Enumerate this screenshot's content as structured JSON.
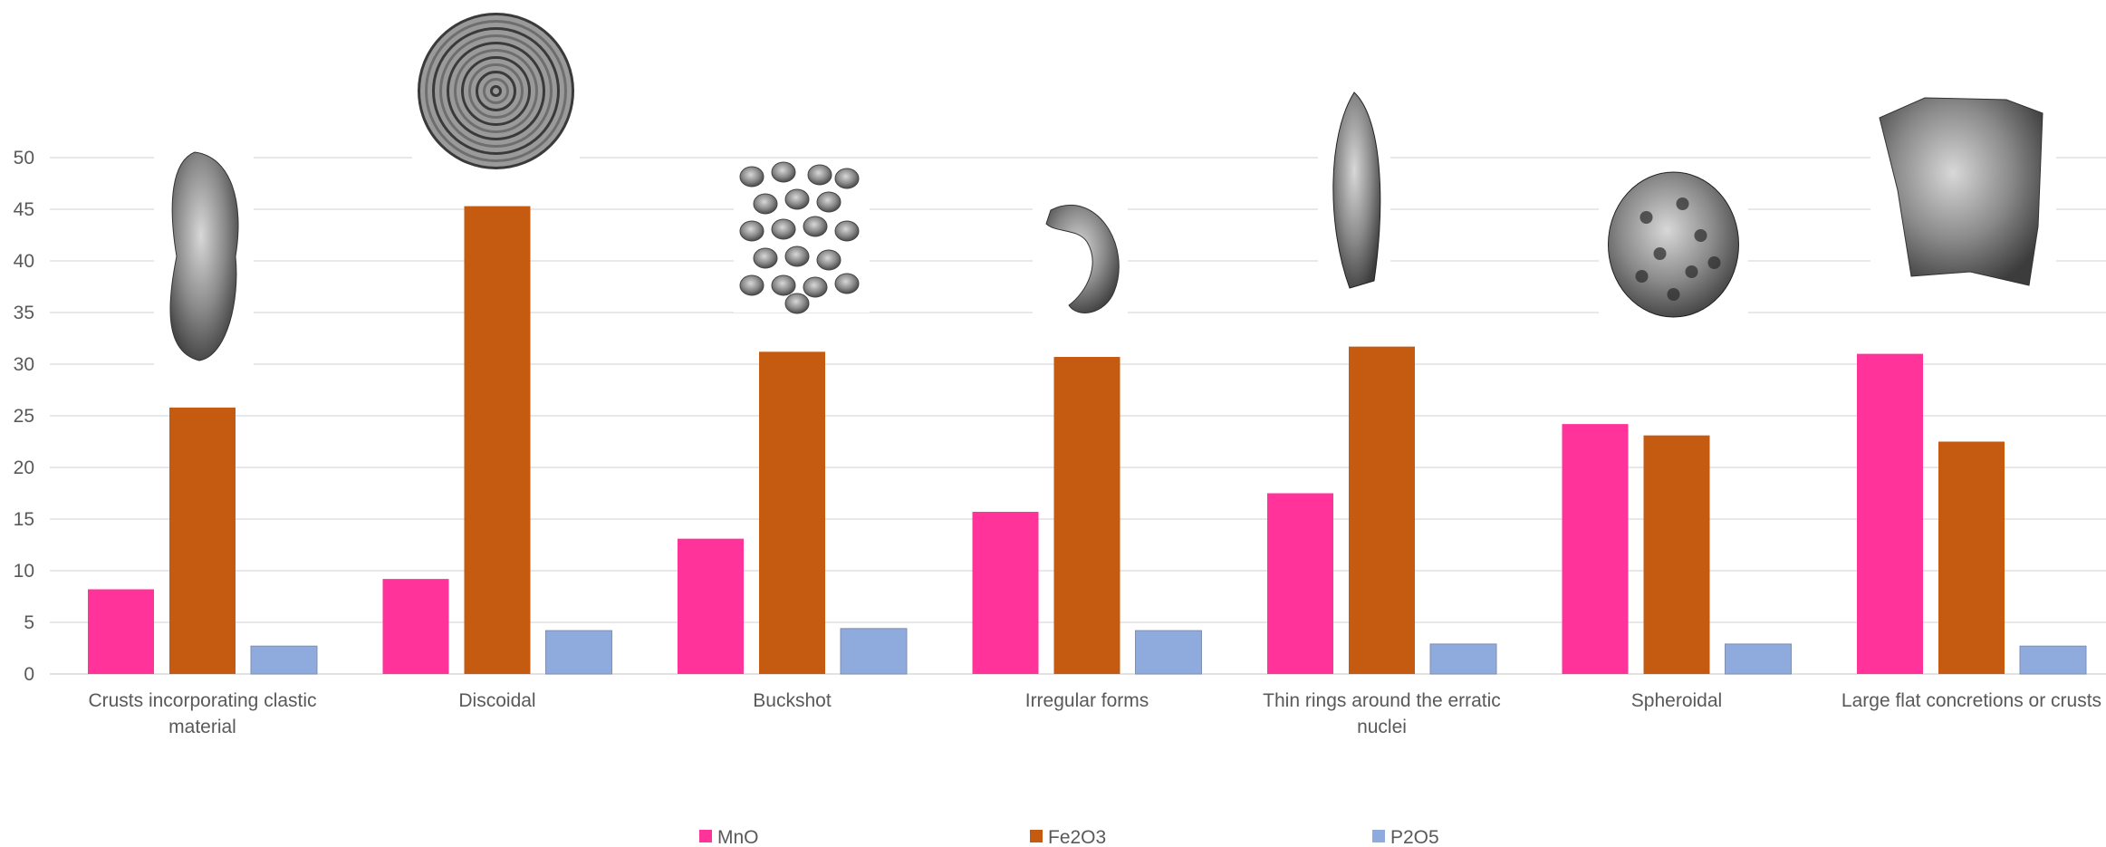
{
  "chart_data": {
    "type": "bar",
    "title": "",
    "xlabel": "",
    "ylabel": "",
    "ylim": [
      0,
      50
    ],
    "yticks": [
      "0",
      "5",
      "10",
      "15",
      "20",
      "25",
      "30",
      "35",
      "40",
      "45",
      "50"
    ],
    "grid": true,
    "legend_position": "bottom",
    "categories": [
      "Crusts incorporating clastic material",
      "Discoidal",
      "Buckshot",
      "Irregular forms",
      "Thin rings around the erratic nuclei",
      "Spheroidal",
      "Large flat concretions or crusts"
    ],
    "series": [
      {
        "name": "MnO",
        "color": "#ff3399",
        "values": [
          8.2,
          9.2,
          13.1,
          15.7,
          17.5,
          24.2,
          31.0
        ]
      },
      {
        "name": "Fe2O3",
        "color": "#c55a11",
        "values": [
          25.8,
          45.3,
          31.2,
          30.7,
          31.7,
          23.1,
          22.5
        ]
      },
      {
        "name": "P2O5",
        "color": "#8faadc",
        "values": [
          2.7,
          4.2,
          4.4,
          4.2,
          2.9,
          2.9,
          2.7
        ]
      }
    ],
    "category_images": [
      "nodule-photo-crust",
      "nodule-photo-discoidal",
      "nodule-photo-buckshot",
      "nodule-photo-irregular",
      "nodule-photo-ring",
      "nodule-photo-spheroidal",
      "nodule-photo-flat"
    ]
  }
}
